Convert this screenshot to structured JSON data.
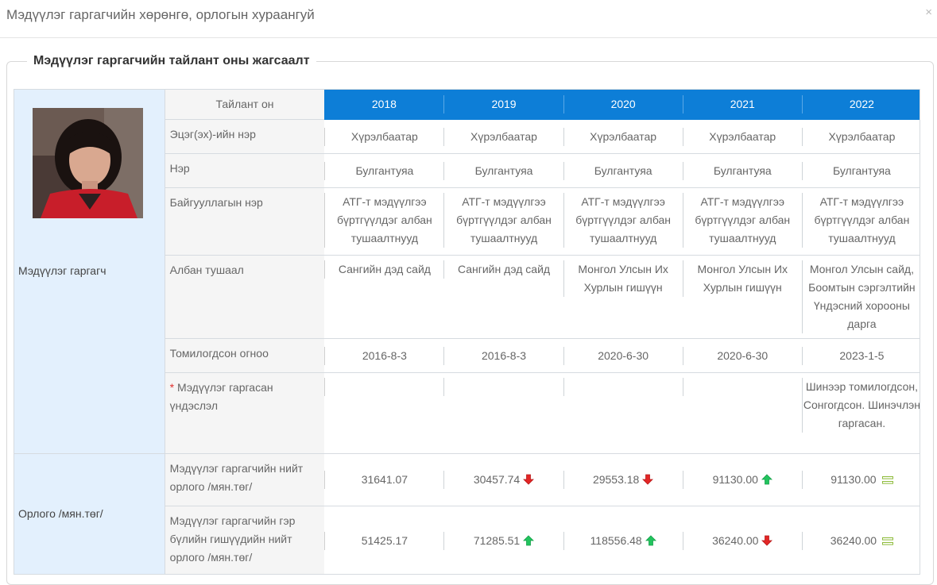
{
  "modal": {
    "title": "Мэдүүлэг гаргагчийн хөрөнгө, орлогын хураангуй",
    "close": "×"
  },
  "panel": {
    "legend": "Мэдүүлэг гаргагчийн тайлант оны жагсаалт"
  },
  "table": {
    "report_year_label": "Тайлант он",
    "years": [
      "2018",
      "2019",
      "2020",
      "2021",
      "2022"
    ],
    "sections": {
      "declarant": "Мэдүүлэг гаргагч",
      "income": "Орлого /мян.төг/"
    },
    "rows": {
      "patronymic": {
        "label": "Эцэг(эх)-ийн нэр",
        "values": [
          "Хүрэлбаатар",
          "Хүрэлбаатар",
          "Хүрэлбаатар",
          "Хүрэлбаатар",
          "Хүрэлбаатар"
        ]
      },
      "name": {
        "label": "Нэр",
        "values": [
          "Булгантуяа",
          "Булгантуяа",
          "Булгантуяа",
          "Булгантуяа",
          "Булгантуяа"
        ]
      },
      "organization": {
        "label": "Байгууллагын нэр",
        "values": [
          "АТГ-т мэдүүлгээ бүртгүүлдэг албан тушаалтнууд",
          "АТГ-т мэдүүлгээ бүртгүүлдэг албан тушаалтнууд",
          "АТГ-т мэдүүлгээ бүртгүүлдэг албан тушаалтнууд",
          "АТГ-т мэдүүлгээ бүртгүүлдэг албан тушаалтнууд",
          "АТГ-т мэдүүлгээ бүртгүүлдэг албан тушаалтнууд"
        ]
      },
      "position": {
        "label": "Албан тушаал",
        "values": [
          "Сангийн дэд сайд",
          "Сангийн дэд сайд",
          "Монгол Улсын Их Хурлын гишүүн",
          "Монгол Улсын Их Хурлын гишүүн",
          "Монгол Улсын сайд, Боомтын сэргэлтийн Үндэсний хорооны дарга"
        ]
      },
      "appointed": {
        "label": "Томилогдсон огноо",
        "values": [
          "2016-8-3",
          "2016-8-3",
          "2020-6-30",
          "2020-6-30",
          "2023-1-5"
        ]
      },
      "basis": {
        "required_mark": "*",
        "label": " Мэдүүлэг гаргасан үндэслэл",
        "values": [
          "",
          "",
          "",
          "",
          "Шинээр томилогдсон, Сонгогдсон. Шинэчлэн гаргасан."
        ]
      },
      "total_income": {
        "label": "Мэдүүлэг гаргагчийн нийт орлого /мян.төг/",
        "values": [
          "31641.07",
          "30457.74",
          "29553.18",
          "91130.00",
          "91130.00"
        ],
        "trends": [
          "none",
          "down",
          "down",
          "up",
          "same"
        ]
      },
      "family_income": {
        "label": "Мэдүүлэг гаргагчийн гэр бүлийн гишүүдийн нийт орлого /мян.төг/",
        "values": [
          "51425.17",
          "71285.51",
          "118556.48",
          "36240.00",
          "36240.00"
        ],
        "trends": [
          "none",
          "up",
          "up",
          "down",
          "same"
        ]
      }
    },
    "trend_colors": {
      "up": "#22c45e",
      "down": "#e32626",
      "same": "#8dbb3a"
    }
  }
}
